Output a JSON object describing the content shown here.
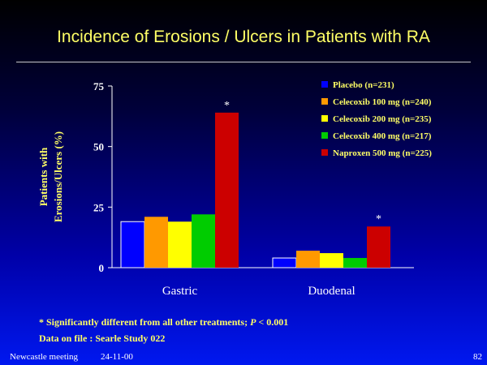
{
  "slide": {
    "title": "Incidence of Erosions / Ulcers in Patients with RA",
    "footnote_prefix": "* Significantly different from all other treatments; ",
    "footnote_p": "P",
    "footnote_suffix": " < 0.001",
    "datafile": "Data on file :  Searle Study 022",
    "meeting": "Newcastle meeting",
    "date": "24-11-00",
    "page": "82"
  },
  "chart_data": {
    "type": "bar",
    "title": "Incidence of Erosions / Ulcers in Patients with RA",
    "ylabel_line1": "Patients with",
    "ylabel_line2": "Erosions/Ulcers (%)",
    "xlabel": "",
    "ylim": [
      0,
      75
    ],
    "yticks": [
      "0",
      "25",
      "50",
      "75"
    ],
    "ytick_values": [
      0,
      25,
      50,
      75
    ],
    "categories": [
      "Gastric",
      "Duodenal"
    ],
    "legend_position": "top-right",
    "series": [
      {
        "name": "Placebo (n=231)",
        "color": "#0000ff",
        "values": [
          19,
          4
        ]
      },
      {
        "name": "Celecoxib 100 mg (n=240)",
        "color": "#ff9900",
        "values": [
          21,
          7
        ]
      },
      {
        "name": "Celecoxib 200 mg (n=235)",
        "color": "#ffff00",
        "values": [
          19,
          6
        ]
      },
      {
        "name": "Celecoxib 400 mg (n=217)",
        "color": "#00cc00",
        "values": [
          22,
          4
        ]
      },
      {
        "name": "Naproxen 500 mg (n=225)",
        "color": "#cc0000",
        "values": [
          64,
          17
        ]
      }
    ],
    "annotations": [
      {
        "text": "*",
        "category": 0,
        "series": 4
      },
      {
        "text": "*",
        "category": 1,
        "series": 4
      }
    ]
  }
}
